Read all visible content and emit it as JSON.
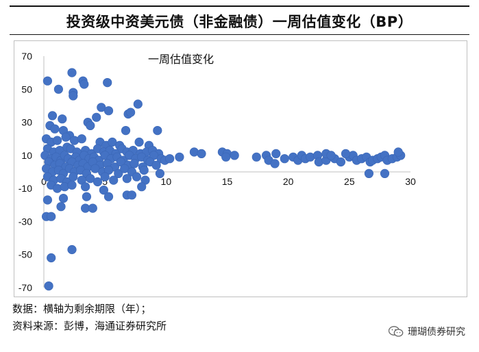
{
  "figure_title": "投资级中资美元债（非金融债）一周估值变化（BP）",
  "notes": {
    "data_note": "数据：横轴为剩余期限（年）；",
    "source_note": "资料来源：彭博，海通证券研究所"
  },
  "watermark": {
    "text": "珊瑚债券研究",
    "icon": "wechat-icon"
  },
  "colors": {
    "point": "#4472C4",
    "axis": "#bfbfbf",
    "text": "#111111"
  },
  "chart_data": {
    "type": "scatter",
    "title": "一周估值变化",
    "xlabel": "",
    "ylabel": "",
    "xlim": [
      0,
      30
    ],
    "ylim": [
      -70,
      70
    ],
    "x_ticks": [
      0,
      5,
      10,
      15,
      20,
      25,
      30
    ],
    "y_ticks": [
      70,
      50,
      30,
      10,
      -10,
      -30,
      -50,
      -70
    ],
    "grid": false,
    "series": [
      {
        "name": "一周估值变化",
        "points": [
          [
            0.3,
            55
          ],
          [
            1.2,
            50
          ],
          [
            2.3,
            60
          ],
          [
            2.4,
            48
          ],
          [
            2.4,
            46
          ],
          [
            3.2,
            55
          ],
          [
            3.3,
            53
          ],
          [
            5.2,
            54
          ],
          [
            0.7,
            34
          ],
          [
            1.5,
            32
          ],
          [
            4.3,
            33
          ],
          [
            4.7,
            39
          ],
          [
            5.3,
            37
          ],
          [
            3.6,
            30
          ],
          [
            3.8,
            28
          ],
          [
            6.9,
            35
          ],
          [
            7.1,
            36
          ],
          [
            7.7,
            41
          ],
          [
            6.7,
            25
          ],
          [
            9.3,
            25
          ],
          [
            0.5,
            28
          ],
          [
            0.9,
            26
          ],
          [
            1.6,
            25
          ],
          [
            2.1,
            22
          ],
          [
            0.2,
            20
          ],
          [
            0.6,
            18
          ],
          [
            1.1,
            19
          ],
          [
            1.8,
            21
          ],
          [
            2.5,
            19
          ],
          [
            3.1,
            20
          ],
          [
            4.6,
            18
          ],
          [
            5.1,
            16
          ],
          [
            5.6,
            18
          ],
          [
            6.2,
            16
          ],
          [
            7.8,
            18
          ],
          [
            8.6,
            16
          ],
          [
            0.3,
            14
          ],
          [
            0.8,
            12
          ],
          [
            1.3,
            13
          ],
          [
            1.9,
            15
          ],
          [
            2.2,
            14
          ],
          [
            2.7,
            12
          ],
          [
            3.4,
            13
          ],
          [
            3.9,
            11
          ],
          [
            4.4,
            14
          ],
          [
            4.9,
            12
          ],
          [
            5.4,
            13
          ],
          [
            5.9,
            11
          ],
          [
            6.4,
            14
          ],
          [
            6.8,
            12
          ],
          [
            7.3,
            13
          ],
          [
            7.9,
            11
          ],
          [
            8.4,
            12
          ],
          [
            8.9,
            13
          ],
          [
            9.4,
            11
          ],
          [
            0.1,
            10
          ],
          [
            0.6,
            8
          ],
          [
            1.0,
            9
          ],
          [
            1.4,
            7
          ],
          [
            1.7,
            10
          ],
          [
            2.0,
            8
          ],
          [
            2.6,
            9
          ],
          [
            2.9,
            7
          ],
          [
            3.3,
            10
          ],
          [
            3.7,
            8
          ],
          [
            4.1,
            9
          ],
          [
            4.5,
            7
          ],
          [
            5.0,
            10
          ],
          [
            5.5,
            8
          ],
          [
            6.0,
            9
          ],
          [
            6.5,
            7
          ],
          [
            7.0,
            10
          ],
          [
            7.5,
            8
          ],
          [
            8.0,
            9
          ],
          [
            8.5,
            7
          ],
          [
            9.0,
            10
          ],
          [
            9.6,
            8
          ],
          [
            0.4,
            6
          ],
          [
            0.9,
            4
          ],
          [
            1.3,
            5
          ],
          [
            1.8,
            3
          ],
          [
            2.3,
            6
          ],
          [
            2.8,
            4
          ],
          [
            3.2,
            5
          ],
          [
            3.6,
            3
          ],
          [
            4.0,
            6
          ],
          [
            4.6,
            4
          ],
          [
            5.2,
            5
          ],
          [
            5.8,
            3
          ],
          [
            6.3,
            6
          ],
          [
            6.9,
            4
          ],
          [
            7.4,
            5
          ],
          [
            8.1,
            3
          ],
          [
            8.7,
            6
          ],
          [
            9.2,
            4
          ],
          [
            0.2,
            2
          ],
          [
            0.7,
            0
          ],
          [
            1.2,
            1
          ],
          [
            1.6,
            -1
          ],
          [
            2.1,
            2
          ],
          [
            2.5,
            0
          ],
          [
            3.0,
            1
          ],
          [
            3.5,
            -1
          ],
          [
            4.2,
            2
          ],
          [
            4.8,
            0
          ],
          [
            5.3,
            1
          ],
          [
            6.1,
            -1
          ],
          [
            6.6,
            2
          ],
          [
            7.2,
            0
          ],
          [
            8.2,
            1
          ],
          [
            9.5,
            -1
          ],
          [
            0.3,
            -3
          ],
          [
            0.8,
            -5
          ],
          [
            1.4,
            -4
          ],
          [
            1.9,
            -6
          ],
          [
            2.4,
            -3
          ],
          [
            3.1,
            -5
          ],
          [
            3.8,
            -4
          ],
          [
            4.4,
            -6
          ],
          [
            5.0,
            -3
          ],
          [
            5.7,
            -5
          ],
          [
            6.8,
            -4
          ],
          [
            7.6,
            -3
          ],
          [
            8.3,
            -5
          ],
          [
            0.6,
            -8
          ],
          [
            1.1,
            -10
          ],
          [
            1.7,
            -9
          ],
          [
            2.3,
            -8
          ],
          [
            3.4,
            -9
          ],
          [
            4.9,
            -11
          ],
          [
            8.0,
            -9
          ],
          [
            0.3,
            -17
          ],
          [
            1.4,
            -21
          ],
          [
            1.6,
            -16
          ],
          [
            3.5,
            -15
          ],
          [
            3.4,
            -22
          ],
          [
            4.0,
            -22
          ],
          [
            5.3,
            -15
          ],
          [
            6.8,
            -14
          ],
          [
            7.2,
            -14
          ],
          [
            0.2,
            -27
          ],
          [
            0.6,
            -27
          ],
          [
            0.6,
            -52
          ],
          [
            2.3,
            -47
          ],
          [
            0.4,
            -69
          ],
          [
            9.9,
            7
          ],
          [
            10.3,
            8
          ],
          [
            11.1,
            9
          ],
          [
            12.3,
            12
          ],
          [
            12.9,
            11
          ],
          [
            14.6,
            12
          ],
          [
            15.0,
            11
          ],
          [
            14.9,
            9
          ],
          [
            15.6,
            10
          ],
          [
            17.4,
            9
          ],
          [
            18.2,
            10
          ],
          [
            18.4,
            7
          ],
          [
            18.9,
            5
          ],
          [
            19.0,
            11
          ],
          [
            19.7,
            8
          ],
          [
            20.4,
            9
          ],
          [
            20.8,
            7
          ],
          [
            21.1,
            10
          ],
          [
            21.4,
            8
          ],
          [
            21.8,
            9
          ],
          [
            22.4,
            10
          ],
          [
            22.5,
            6
          ],
          [
            23.1,
            7
          ],
          [
            23.8,
            8
          ],
          [
            24.3,
            6
          ],
          [
            25.0,
            9
          ],
          [
            25.3,
            10
          ],
          [
            25.6,
            7
          ],
          [
            26.0,
            8
          ],
          [
            26.4,
            9
          ],
          [
            26.7,
            6
          ],
          [
            26.9,
            7
          ],
          [
            27.3,
            8
          ],
          [
            27.6,
            9
          ],
          [
            27.9,
            10
          ],
          [
            28.1,
            7
          ],
          [
            28.5,
            8
          ],
          [
            28.9,
            9
          ],
          [
            29.2,
            10
          ],
          [
            26.6,
            -1
          ],
          [
            27.9,
            -1
          ],
          [
            23.1,
            11
          ],
          [
            23.5,
            10
          ],
          [
            24.7,
            11
          ],
          [
            29.0,
            12
          ]
        ]
      }
    ]
  }
}
